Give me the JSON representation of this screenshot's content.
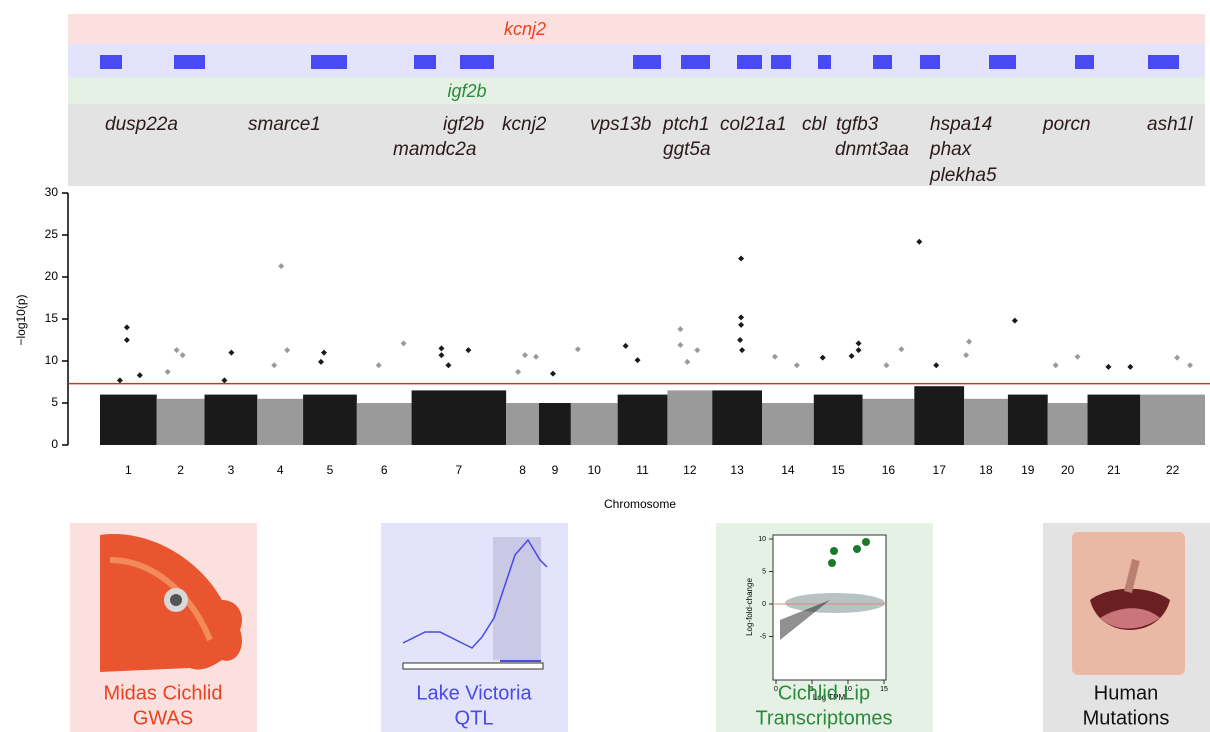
{
  "tracks": {
    "top_label": "kcnj2",
    "middle_label": "igf2b",
    "genes": [
      [
        "dusp22a"
      ],
      [
        "smarce1"
      ],
      [
        "igf2b",
        "mamdc2a"
      ],
      [
        "kcnj2"
      ],
      [
        "vps13b"
      ],
      [
        "ptch1",
        "ggt5a"
      ],
      [
        "col21a1"
      ],
      [
        "cbl"
      ],
      [
        "tgfb3",
        "dnmt3aa"
      ],
      [
        "hspa14",
        "phax",
        "plekha5"
      ],
      [
        "porcn"
      ],
      [
        "ash1l"
      ]
    ]
  },
  "chart_data": {
    "type": "manhattan",
    "y_label": "−log10(p)",
    "x_label": "Chromosome",
    "categories": [
      "1",
      "2",
      "3",
      "4",
      "5",
      "6",
      "7",
      "8",
      "9",
      "10",
      "11",
      "12",
      "13",
      "14",
      "15",
      "16",
      "17",
      "18",
      "19",
      "20",
      "21",
      "22"
    ],
    "lengths": [
      57,
      48,
      53,
      46,
      54,
      55,
      95,
      33,
      32,
      47,
      50,
      45,
      50,
      52,
      49,
      52,
      50,
      44,
      40,
      40,
      53,
      65
    ],
    "xlim": [
      0,
      1110
    ],
    "bulk": [
      6,
      5.5,
      6,
      5.5,
      6,
      5,
      6.5,
      5,
      5,
      5,
      6,
      6.5,
      6.5,
      5,
      6,
      5.5,
      7,
      5.5,
      6,
      5,
      6,
      6
    ],
    "colors": [
      "#1a1a1a",
      "#9a9a9a"
    ],
    "points": {
      "chromosome": [
        0,
        0,
        0,
        0,
        1,
        1,
        1,
        2,
        2,
        3,
        3,
        3,
        4,
        4,
        5,
        5,
        6,
        6,
        6,
        6,
        7,
        7,
        7,
        8,
        9,
        10,
        10,
        11,
        11,
        11,
        11,
        12,
        12,
        12,
        12,
        12,
        13,
        13,
        14,
        14,
        14,
        14,
        15,
        15,
        16,
        16,
        17,
        17,
        18,
        19,
        19,
        20,
        20,
        21,
        21
      ],
      "position": [
        27,
        27,
        20,
        40,
        20,
        26,
        11,
        27,
        20,
        24,
        30,
        17,
        21,
        18,
        47,
        22,
        30,
        30,
        57,
        37,
        19,
        30,
        12,
        14,
        7,
        8,
        20,
        13,
        13,
        30,
        20,
        29,
        29,
        29,
        28,
        30,
        13,
        35,
        9,
        45,
        45,
        38,
        39,
        24,
        5,
        22,
        5,
        2,
        7,
        30,
        8,
        21,
        43,
        37,
        50
      ],
      "values": [
        14,
        12.5,
        7.7,
        8.3,
        11.3,
        10.7,
        8.7,
        11,
        7.7,
        21.3,
        11.3,
        9.5,
        11,
        9.9,
        12.1,
        9.5,
        11.5,
        10.7,
        11.3,
        9.5,
        10.7,
        10.5,
        8.7,
        8.5,
        11.4,
        11.8,
        10.1,
        13.8,
        11.9,
        11.3,
        9.9,
        22.2,
        15.2,
        14.3,
        12.5,
        11.3,
        10.5,
        9.5,
        10.4,
        12.1,
        11.3,
        10.6,
        11.4,
        9.5,
        24.2,
        9.5,
        12.3,
        10.7,
        14.8,
        10.5,
        9.5,
        9.3,
        9.3,
        10.4,
        9.5
      ]
    },
    "threshold": 7.3,
    "threshold_color": "#c0392b",
    "ylim": [
      0,
      30
    ],
    "yticks": [
      0,
      5,
      10,
      15,
      20,
      25,
      30
    ]
  },
  "panels": [
    {
      "lines": [
        "Midas Cichlid",
        "GWAS"
      ],
      "color": "#e8431f"
    },
    {
      "lines": [
        "Lake Victoria",
        "QTL"
      ],
      "color": "#4a4ae6"
    },
    {
      "lines": [
        "Cichlid Lip",
        "Transcriptomes"
      ],
      "color": "#2a8a3a"
    },
    {
      "lines": [
        "Human",
        "Mutations"
      ],
      "color": "#111111"
    }
  ],
  "inset": {
    "y_label": "Log-fold-change",
    "x_label": "Log TPM",
    "xticks": [
      0,
      5,
      10,
      15
    ],
    "yticks": [
      -5,
      0,
      5,
      10
    ]
  }
}
